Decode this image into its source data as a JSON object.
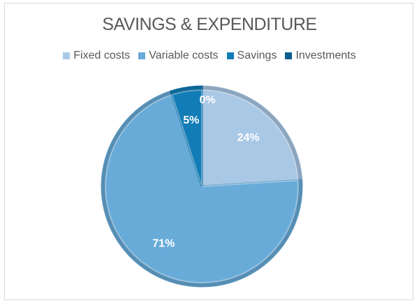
{
  "chart_data": {
    "type": "pie",
    "title": "SAVINGS & EXPENDITURE",
    "legend_position": "top",
    "categories": [
      "Fixed costs",
      "Variable costs",
      "Savings",
      "Investments"
    ],
    "values": [
      24,
      71,
      5,
      0
    ],
    "labels": [
      "24%",
      "71%",
      "5%",
      "0%"
    ],
    "colors": [
      "#a9c8e6",
      "#68abd9",
      "#127cb6",
      "#0b5f8f"
    ],
    "start_angle_deg": 0,
    "direction": "clockwise"
  }
}
